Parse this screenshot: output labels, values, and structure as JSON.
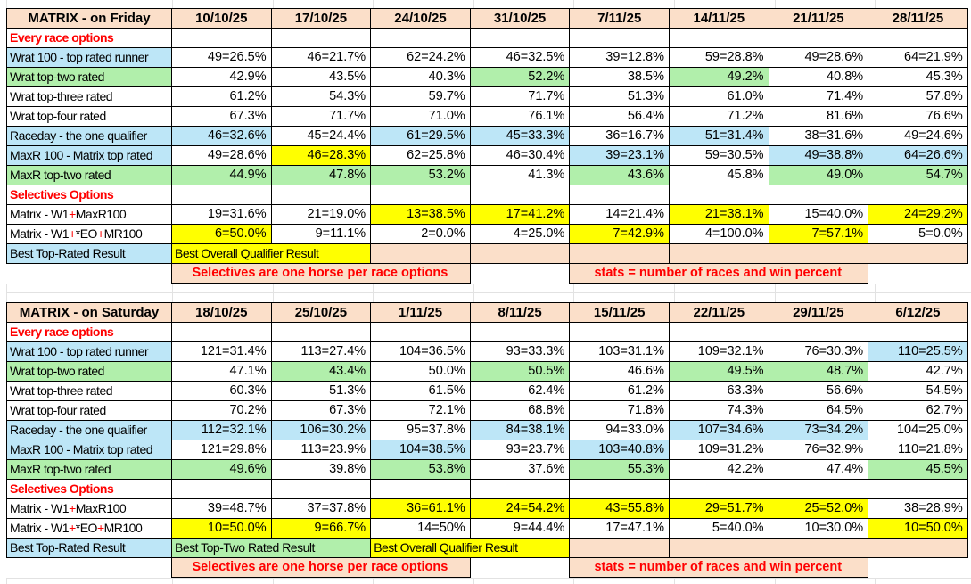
{
  "colors": {
    "peach": "#FBDFC9",
    "blue": "#BDE6F7",
    "green": "#B1EFAB",
    "yellow": "#FFFF00",
    "red": "#FF0000",
    "grid": "#E2E2E2"
  },
  "tables": [
    {
      "name": "friday-table",
      "title": "MATRIX - on Friday",
      "dates": [
        "10/10/25",
        "17/10/25",
        "24/10/25",
        "31/10/25",
        "7/11/25",
        "14/11/25",
        "21/11/25",
        "28/11/25"
      ],
      "rows": [
        {
          "kind": "section",
          "label": "Every race options"
        },
        {
          "kind": "data",
          "label": "Wrat 100 - top rated runner",
          "labelBg": "b",
          "cells": [
            [
              "49=26.5%",
              "w"
            ],
            [
              "46=21.7%",
              "w"
            ],
            [
              "62=24.2%",
              "w"
            ],
            [
              "46=32.5%",
              "w"
            ],
            [
              "39=12.8%",
              "w"
            ],
            [
              "59=28.8%",
              "w"
            ],
            [
              "49=28.6%",
              "w"
            ],
            [
              "64=21.9%",
              "w"
            ]
          ]
        },
        {
          "kind": "data",
          "label": "Wrat top-two rated",
          "labelBg": "g",
          "cells": [
            [
              "42.9%",
              "w"
            ],
            [
              "43.5%",
              "w"
            ],
            [
              "40.3%",
              "w"
            ],
            [
              "52.2%",
              "g"
            ],
            [
              "38.5%",
              "w"
            ],
            [
              "49.2%",
              "g"
            ],
            [
              "40.8%",
              "w"
            ],
            [
              "45.3%",
              "w"
            ]
          ]
        },
        {
          "kind": "data",
          "label": "Wrat top-three rated",
          "labelBg": "w",
          "cells": [
            [
              "61.2%",
              "w"
            ],
            [
              "54.3%",
              "w"
            ],
            [
              "59.7%",
              "w"
            ],
            [
              "71.7%",
              "w"
            ],
            [
              "51.3%",
              "w"
            ],
            [
              "61.0%",
              "w"
            ],
            [
              "71.4%",
              "w"
            ],
            [
              "57.8%",
              "w"
            ]
          ]
        },
        {
          "kind": "data",
          "label": "Wrat top-four rated",
          "labelBg": "w",
          "cells": [
            [
              "67.3%",
              "w"
            ],
            [
              "71.7%",
              "w"
            ],
            [
              "71.0%",
              "w"
            ],
            [
              "76.1%",
              "w"
            ],
            [
              "56.4%",
              "w"
            ],
            [
              "71.2%",
              "w"
            ],
            [
              "81.6%",
              "w"
            ],
            [
              "76.6%",
              "w"
            ]
          ]
        },
        {
          "kind": "data",
          "label": "Raceday - the one qualifier",
          "labelBg": "b",
          "cells": [
            [
              "46=32.6%",
              "b"
            ],
            [
              "45=24.4%",
              "w"
            ],
            [
              "61=29.5%",
              "b"
            ],
            [
              "45=33.3%",
              "b"
            ],
            [
              "36=16.7%",
              "w"
            ],
            [
              "51=31.4%",
              "b"
            ],
            [
              "38=31.6%",
              "w"
            ],
            [
              "49=24.6%",
              "w"
            ]
          ]
        },
        {
          "kind": "data",
          "label": "MaxR 100 - Matrix top rated",
          "labelBg": "b",
          "cells": [
            [
              "49=28.6%",
              "w"
            ],
            [
              "46=28.3%",
              "y"
            ],
            [
              "62=25.8%",
              "w"
            ],
            [
              "46=30.4%",
              "w"
            ],
            [
              "39=23.1%",
              "b"
            ],
            [
              "59=30.5%",
              "w"
            ],
            [
              "49=38.8%",
              "b"
            ],
            [
              "64=26.6%",
              "b"
            ]
          ]
        },
        {
          "kind": "data",
          "label": "MaxR top-two rated",
          "labelBg": "g",
          "cells": [
            [
              "44.9%",
              "g"
            ],
            [
              "47.8%",
              "g"
            ],
            [
              "53.2%",
              "g"
            ],
            [
              "41.3%",
              "w"
            ],
            [
              "43.6%",
              "g"
            ],
            [
              "45.8%",
              "w"
            ],
            [
              "49.0%",
              "g"
            ],
            [
              "54.7%",
              "g"
            ]
          ]
        },
        {
          "kind": "section",
          "label": "Selectives Options"
        },
        {
          "kind": "data",
          "label": "Matrix - W1+MaxR100",
          "labelBg": "w",
          "redPlus": true,
          "cells": [
            [
              "19=31.6%",
              "w"
            ],
            [
              "21=19.0%",
              "w"
            ],
            [
              "13=38.5%",
              "y"
            ],
            [
              "17=41.2%",
              "y"
            ],
            [
              "14=21.4%",
              "w"
            ],
            [
              "21=38.1%",
              "y"
            ],
            [
              "15=40.0%",
              "w"
            ],
            [
              "24=29.2%",
              "y"
            ]
          ]
        },
        {
          "kind": "data",
          "label": "Matrix - W1+*EO+MR100",
          "labelBg": "w",
          "redPlus": true,
          "cells": [
            [
              "6=50.0%",
              "y"
            ],
            [
              "9=11.1%",
              "w"
            ],
            [
              "2=0.0%",
              "w"
            ],
            [
              "4=25.0%",
              "w"
            ],
            [
              "7=42.9%",
              "y"
            ],
            [
              "4=100.0%",
              "w"
            ],
            [
              "7=57.1%",
              "y"
            ],
            [
              "5=0.0%",
              "w"
            ]
          ]
        }
      ],
      "best": {
        "label": "Best Top-Rated Result",
        "segments": [
          {
            "text": "Best Overall Qualifier Result",
            "bg": "y",
            "span": 2
          },
          {
            "bg": "p",
            "span": 1
          },
          {
            "bg": "p",
            "span": 1
          },
          {
            "bg": "p",
            "span": 1
          },
          {
            "bg": "p",
            "span": 1
          },
          {
            "bg": "p",
            "span": 1
          },
          {
            "bg": "p",
            "span": 1
          }
        ]
      },
      "notes": [
        {
          "span": 1
        },
        {
          "text": "Selectives are one horse per race options",
          "span": 3
        },
        {
          "span": 1
        },
        {
          "text": "stats = number of races and win percent",
          "span": 3
        },
        {
          "span": 1
        }
      ]
    },
    {
      "name": "saturday-table",
      "title": "MATRIX - on Saturday",
      "dates": [
        "18/10/25",
        "25/10/25",
        "1/11/25",
        "8/11/25",
        "15/11/25",
        "22/11/25",
        "29/11/25",
        "6/12/25"
      ],
      "rows": [
        {
          "kind": "section",
          "label": "Every race options"
        },
        {
          "kind": "data",
          "label": "Wrat 100 - top rated runner",
          "labelBg": "b",
          "cells": [
            [
              "121=31.4%",
              "w"
            ],
            [
              "113=27.4%",
              "w"
            ],
            [
              "104=36.5%",
              "w"
            ],
            [
              "93=33.3%",
              "w"
            ],
            [
              "103=31.1%",
              "w"
            ],
            [
              "109=32.1%",
              "w"
            ],
            [
              "76=30.3%",
              "w"
            ],
            [
              "110=25.5%",
              "b"
            ]
          ]
        },
        {
          "kind": "data",
          "label": "Wrat top-two rated",
          "labelBg": "g",
          "cells": [
            [
              "47.1%",
              "w"
            ],
            [
              "43.4%",
              "g"
            ],
            [
              "50.0%",
              "w"
            ],
            [
              "50.5%",
              "g"
            ],
            [
              "46.6%",
              "w"
            ],
            [
              "49.5%",
              "g"
            ],
            [
              "48.7%",
              "g"
            ],
            [
              "42.7%",
              "w"
            ]
          ]
        },
        {
          "kind": "data",
          "label": "Wrat top-three rated",
          "labelBg": "w",
          "cells": [
            [
              "60.3%",
              "w"
            ],
            [
              "51.3%",
              "w"
            ],
            [
              "61.5%",
              "w"
            ],
            [
              "62.4%",
              "w"
            ],
            [
              "61.2%",
              "w"
            ],
            [
              "63.3%",
              "w"
            ],
            [
              "56.6%",
              "w"
            ],
            [
              "54.5%",
              "w"
            ]
          ]
        },
        {
          "kind": "data",
          "label": "Wrat top-four rated",
          "labelBg": "w",
          "cells": [
            [
              "70.2%",
              "w"
            ],
            [
              "67.3%",
              "w"
            ],
            [
              "72.1%",
              "w"
            ],
            [
              "68.8%",
              "w"
            ],
            [
              "71.8%",
              "w"
            ],
            [
              "74.3%",
              "w"
            ],
            [
              "64.5%",
              "w"
            ],
            [
              "62.7%",
              "w"
            ]
          ]
        },
        {
          "kind": "data",
          "label": "Raceday - the one qualifier",
          "labelBg": "b",
          "cells": [
            [
              "112=32.1%",
              "b"
            ],
            [
              "106=30.2%",
              "b"
            ],
            [
              "95=37.8%",
              "w"
            ],
            [
              "84=38.1%",
              "b"
            ],
            [
              "94=33.0%",
              "w"
            ],
            [
              "107=34.6%",
              "b"
            ],
            [
              "73=34.2%",
              "b"
            ],
            [
              "104=25.0%",
              "w"
            ]
          ]
        },
        {
          "kind": "data",
          "label": "MaxR 100 - Matrix top rated",
          "labelBg": "b",
          "cells": [
            [
              "121=29.8%",
              "w"
            ],
            [
              "113=23.9%",
              "w"
            ],
            [
              "104=38.5%",
              "b"
            ],
            [
              "93=23.7%",
              "w"
            ],
            [
              "103=40.8%",
              "b"
            ],
            [
              "109=31.2%",
              "w"
            ],
            [
              "76=32.9%",
              "w"
            ],
            [
              "110=21.8%",
              "w"
            ]
          ]
        },
        {
          "kind": "data",
          "label": "MaxR top-two rated",
          "labelBg": "g",
          "cells": [
            [
              "49.6%",
              "g"
            ],
            [
              "39.8%",
              "w"
            ],
            [
              "53.8%",
              "g"
            ],
            [
              "37.6%",
              "w"
            ],
            [
              "55.3%",
              "g"
            ],
            [
              "42.2%",
              "w"
            ],
            [
              "47.4%",
              "w"
            ],
            [
              "45.5%",
              "g"
            ]
          ]
        },
        {
          "kind": "section",
          "label": "Selectives Options"
        },
        {
          "kind": "data",
          "label": "Matrix - W1+MaxR100",
          "labelBg": "w",
          "redPlus": true,
          "cells": [
            [
              "39=48.7%",
              "w"
            ],
            [
              "37=37.8%",
              "w"
            ],
            [
              "36=61.1%",
              "y"
            ],
            [
              "24=54.2%",
              "y"
            ],
            [
              "43=55.8%",
              "y"
            ],
            [
              "29=51.7%",
              "y"
            ],
            [
              "25=52.0%",
              "y"
            ],
            [
              "38=28.9%",
              "w"
            ]
          ]
        },
        {
          "kind": "data",
          "label": "Matrix - W1+*EO+MR100",
          "labelBg": "w",
          "redPlus": true,
          "cells": [
            [
              "10=50.0%",
              "y"
            ],
            [
              "9=66.7%",
              "y"
            ],
            [
              "14=50%",
              "w"
            ],
            [
              "9=44.4%",
              "w"
            ],
            [
              "17=47.1%",
              "w"
            ],
            [
              "5=40.0%",
              "w"
            ],
            [
              "10=30.0%",
              "w"
            ],
            [
              "10=50.0%",
              "y"
            ]
          ]
        }
      ],
      "best": {
        "label": "Best Top-Rated Result",
        "segments": [
          {
            "text": "Best Top-Two Rated Result",
            "bg": "g",
            "span": 2
          },
          {
            "text": "Best Overall Qualifier Result",
            "bg": "y",
            "span": 2
          },
          {
            "bg": "p",
            "span": 1
          },
          {
            "bg": "p",
            "span": 1
          },
          {
            "bg": "p",
            "span": 1
          },
          {
            "bg": "p",
            "span": 1
          }
        ]
      },
      "notes": [
        {
          "span": 1
        },
        {
          "text": "Selectives are one horse per race options",
          "span": 3
        },
        {
          "span": 1
        },
        {
          "text": "stats = number of races and win percent",
          "span": 3
        },
        {
          "span": 1
        }
      ]
    }
  ]
}
